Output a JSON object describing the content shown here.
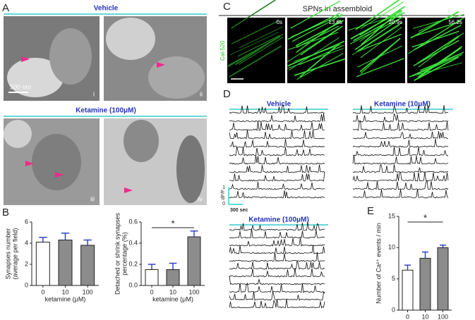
{
  "panel_labels": [
    "A",
    "B",
    "C",
    "D",
    "E"
  ],
  "panel_a": {
    "title_top": "Vehicle",
    "title_bottom": "Ketamine (100μM)",
    "scale": "500 nm",
    "image_labels": [
      "i",
      "ii",
      "iii",
      "iv"
    ]
  },
  "panel_c": {
    "title": "SPNs in assembloid",
    "dye": "Cal-520",
    "times": [
      "0s",
      "13.6s",
      "20.9s",
      "56.2s"
    ]
  },
  "panel_d": {
    "groups": [
      "Vehicle",
      "Ketamine (10μM)",
      "Ketamine (100μM)"
    ],
    "scale_labels": [
      "dF/F",
      "1",
      "0",
      "300 sec"
    ]
  },
  "chart_data": [
    {
      "type": "bar",
      "ylabel": [
        "Synapses number",
        "(average per field)"
      ],
      "xlabel": "ketamine (μM)",
      "categories": [
        "0",
        "10",
        "100"
      ],
      "values": [
        4.1,
        4.3,
        3.8
      ],
      "errors": [
        0.45,
        0.65,
        0.5
      ],
      "colors": [
        "#ffffff",
        "#8c8c8c",
        "#8c8c8c"
      ],
      "error_color": "#3344cc",
      "ylim": [
        0,
        6
      ],
      "yticks": [
        0,
        2,
        4,
        6
      ]
    },
    {
      "type": "bar",
      "ylabel": [
        "Detached or shrink synapses",
        "percentage (%)"
      ],
      "xlabel": "ketamine (μM)",
      "categories": [
        "0",
        "10",
        "100"
      ],
      "values": [
        0.15,
        0.15,
        0.46
      ],
      "errors": [
        0.05,
        0.06,
        0.055
      ],
      "colors": [
        "#ffffff",
        "#8c8c8c",
        "#8c8c8c"
      ],
      "error_color": "#3344cc",
      "annotation": "*",
      "ylim": [
        0,
        0.6
      ],
      "yticks": [
        {
          "value": 0,
          "label": "0.0"
        },
        0.2,
        0.4,
        0.6
      ]
    },
    {
      "type": "bar",
      "ylabel": [
        "Number of Ca²⁺ events / min"
      ],
      "xlabel": "ketamine (μM)",
      "categories": [
        "0",
        "10",
        "100"
      ],
      "values": [
        6.4,
        8.3,
        10.0
      ],
      "errors": [
        0.8,
        1.0,
        0.4
      ],
      "colors": [
        "#ffffff",
        "#8c8c8c",
        "#8c8c8c"
      ],
      "error_color": "#3344cc",
      "annotation": "*",
      "ylim": [
        0,
        15
      ],
      "yticks": [
        0,
        5,
        10,
        15
      ]
    }
  ]
}
